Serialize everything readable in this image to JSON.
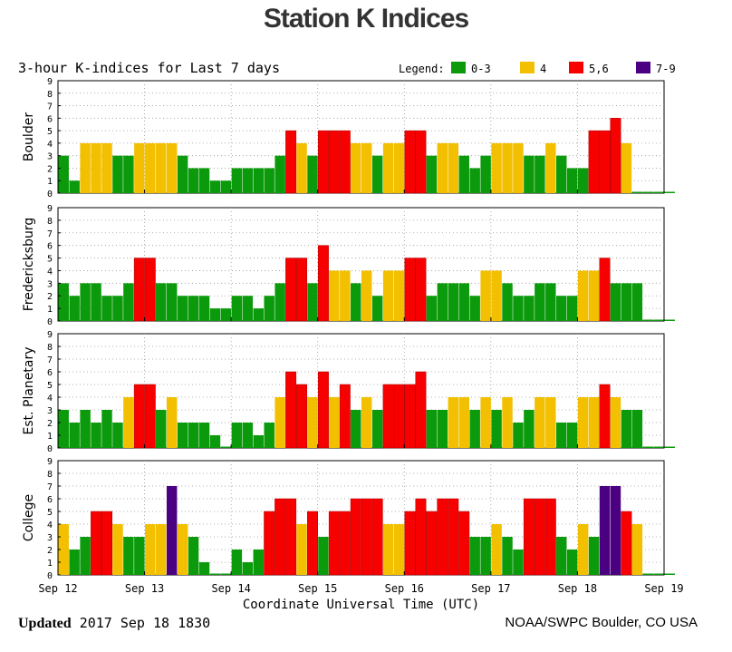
{
  "page_title": "Station K Indices",
  "footer": {
    "updated_label": "Updated",
    "updated_value": "2017 Sep 18 1830",
    "credit": "NOAA/SWPC Boulder, CO USA"
  },
  "chart_data": {
    "type": "bar",
    "title": "3-hour K-indices for Last 7 days",
    "xlabel": "Coordinate Universal Time (UTC)",
    "ylim": [
      0,
      9
    ],
    "yticks": [
      "0",
      "1",
      "2",
      "3",
      "4",
      "5",
      "6",
      "7",
      "8",
      "9"
    ],
    "x_ticks": [
      "Sep 12",
      "Sep 13",
      "Sep 14",
      "Sep 15",
      "Sep 16",
      "Sep 17",
      "Sep 18",
      "Sep 19"
    ],
    "intervals_per_day": 8,
    "legend": {
      "label": "Legend:",
      "entries": [
        {
          "label": "0-3",
          "color": "#0b9a0b"
        },
        {
          "label": "4",
          "color": "#f2c000"
        },
        {
          "label": "5,6",
          "color": "#f60000"
        },
        {
          "label": "7-9",
          "color": "#4b0082"
        }
      ]
    },
    "series": [
      {
        "name": "Boulder",
        "values": [
          3,
          1,
          4,
          4,
          4,
          3,
          3,
          4,
          4,
          4,
          4,
          3,
          2,
          2,
          1,
          1,
          2,
          2,
          2,
          2,
          3,
          5,
          4,
          3,
          5,
          5,
          5,
          4,
          4,
          3,
          4,
          4,
          5,
          5,
          3,
          4,
          4,
          3,
          2,
          3,
          4,
          4,
          4,
          3,
          3,
          4,
          3,
          2,
          2,
          5,
          5,
          6,
          4,
          0,
          0,
          0,
          0
        ]
      },
      {
        "name": "Fredericksburg",
        "values": [
          3,
          2,
          3,
          3,
          2,
          2,
          3,
          5,
          5,
          3,
          3,
          2,
          2,
          2,
          1,
          1,
          2,
          2,
          1,
          2,
          3,
          5,
          5,
          3,
          6,
          4,
          4,
          3,
          4,
          2,
          4,
          4,
          5,
          5,
          2,
          3,
          3,
          3,
          2,
          4,
          4,
          3,
          2,
          2,
          3,
          3,
          2,
          2,
          4,
          4,
          5,
          3,
          3,
          3,
          0,
          0,
          0
        ]
      },
      {
        "name": "Est. Planetary",
        "values": [
          3,
          2,
          3,
          2,
          3,
          2,
          4,
          5,
          5,
          3,
          4,
          2,
          2,
          2,
          1,
          0,
          2,
          2,
          1,
          2,
          4,
          6,
          5,
          4,
          6,
          4,
          5,
          3,
          4,
          3,
          5,
          5,
          5,
          6,
          3,
          3,
          4,
          4,
          3,
          4,
          3,
          4,
          2,
          3,
          4,
          4,
          2,
          2,
          4,
          4,
          5,
          4,
          3,
          3,
          0,
          0,
          0
        ]
      },
      {
        "name": "College",
        "values": [
          4,
          2,
          3,
          5,
          5,
          4,
          3,
          3,
          4,
          4,
          7,
          4,
          3,
          1,
          0,
          0,
          2,
          1,
          2,
          5,
          6,
          6,
          4,
          5,
          3,
          5,
          5,
          6,
          6,
          6,
          4,
          4,
          5,
          6,
          5,
          6,
          6,
          5,
          3,
          3,
          4,
          3,
          2,
          6,
          6,
          6,
          3,
          2,
          4,
          3,
          7,
          7,
          5,
          4,
          0,
          0,
          0
        ]
      }
    ]
  }
}
